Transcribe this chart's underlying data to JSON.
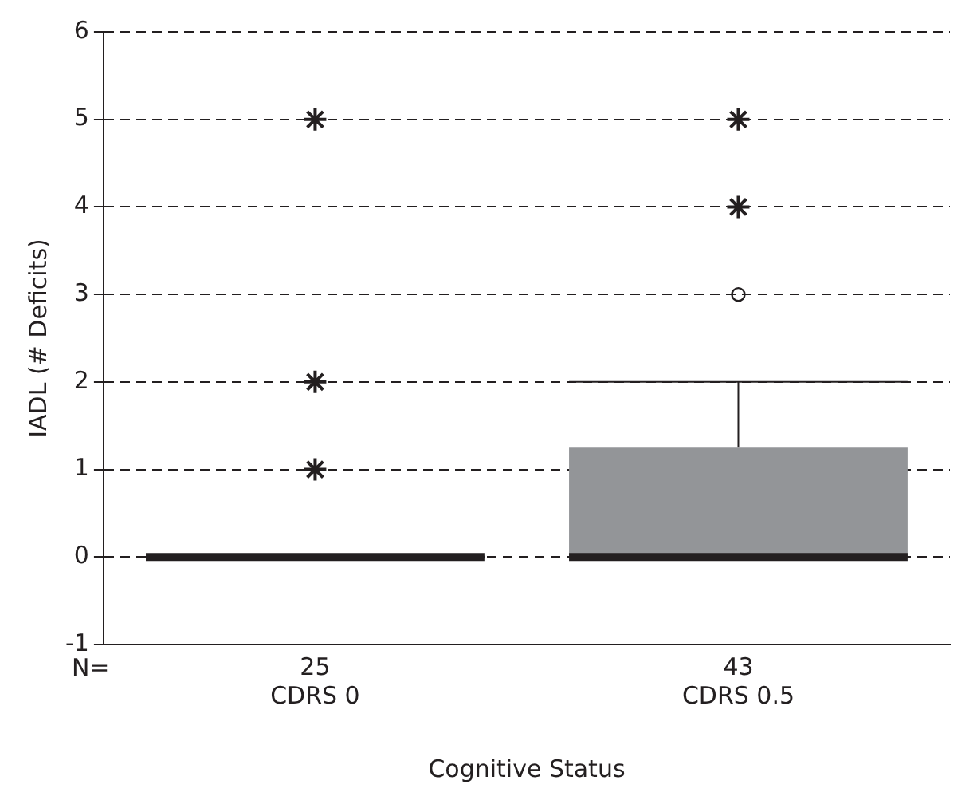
{
  "chart_data": {
    "type": "box",
    "xlabel": "Cognitive Status",
    "ylabel": "IADL (# Deficits)",
    "categories": [
      "25\nCDRS 0",
      "43\nCDRS 0.5"
    ],
    "ylim": [
      -1,
      6
    ],
    "yticks": [
      -1,
      0,
      1,
      2,
      3,
      4,
      5,
      6
    ],
    "grid": "y",
    "line_style": "dashed",
    "legend": false,
    "annotations": [
      "N="
    ],
    "series": [
      {
        "type": "box",
        "color": "#939598",
        "boxes": [
          {
            "low": 0,
            "q1": 0,
            "median": 0,
            "q3": 0,
            "high": 0
          },
          {
            "low": 0,
            "q1": 0,
            "median": 0,
            "q3": 1.25,
            "high": 2,
            "outliers": [
              3
            ]
          }
        ]
      },
      {
        "type": "scatter",
        "marker": "cross",
        "color": "#231f20",
        "x": [
          "25\nCDRS 0",
          "25\nCDRS 0",
          "25\nCDRS 0",
          "43\nCDRS 0.5",
          "43\nCDRS 0.5"
        ],
        "values": [
          1,
          2,
          5,
          4,
          5
        ]
      }
    ]
  }
}
